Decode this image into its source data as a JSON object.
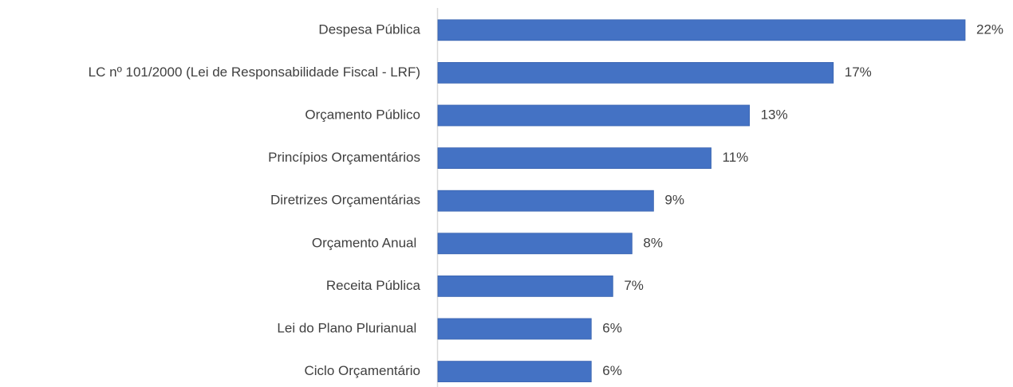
{
  "chart_data": {
    "type": "hbar",
    "categories": [
      "Despesa Pública",
      "LC nº 101/2000 (Lei de Responsabilidade Fiscal - LRF)",
      "Orçamento Público",
      "Princípios Orçamentários",
      "Diretrizes Orçamentárias",
      "Orçamento Anual ",
      "Receita Pública",
      "Lei do Plano Plurianual ",
      "Ciclo Orçamentário"
    ],
    "values": [
      22,
      16.5,
      13,
      11.4,
      9,
      8.1,
      7.3,
      6.4,
      6.4
    ],
    "value_labels": [
      "22%",
      "17%",
      "13%",
      "11%",
      "9%",
      "8%",
      "7%",
      "6%",
      "6%"
    ],
    "color": "#4472c4"
  }
}
